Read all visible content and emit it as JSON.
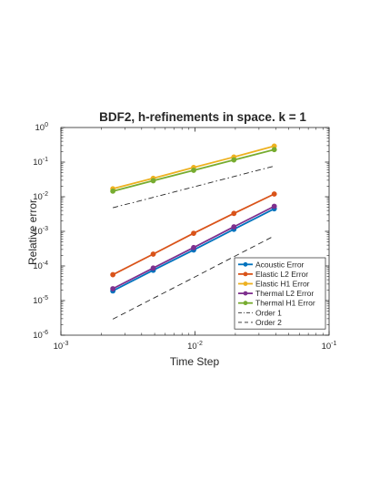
{
  "chart_data": {
    "type": "line",
    "title": "BDF2, h-refinements in space. k = 1",
    "xlabel": "Time Step",
    "ylabel": "Relative error",
    "x_scale": "log",
    "y_scale": "log",
    "xlim": [
      0.001,
      0.1
    ],
    "ylim": [
      1e-06,
      1
    ],
    "grid": false,
    "legend_position": "bottom-right",
    "x_ticks": [
      {
        "base": "10",
        "exp": "-3",
        "value": 0.001
      },
      {
        "base": "10",
        "exp": "-2",
        "value": 0.01
      },
      {
        "base": "10",
        "exp": "-1",
        "value": 0.1
      }
    ],
    "y_ticks": [
      {
        "base": "10",
        "exp": "-6",
        "value": 1e-06
      },
      {
        "base": "10",
        "exp": "-5",
        "value": 1e-05
      },
      {
        "base": "10",
        "exp": "-4",
        "value": 0.0001
      },
      {
        "base": "10",
        "exp": "-3",
        "value": 0.001
      },
      {
        "base": "10",
        "exp": "-2",
        "value": 0.01
      },
      {
        "base": "10",
        "exp": "-1",
        "value": 0.1
      },
      {
        "base": "10",
        "exp": "0",
        "value": 1
      }
    ],
    "x": [
      0.00244,
      0.00488,
      0.00977,
      0.0195,
      0.039
    ],
    "series": [
      {
        "name": "Acoustic Error",
        "color": "#0072BD",
        "style": "solid-marker",
        "values": [
          1.9e-05,
          7.5e-05,
          0.00029,
          0.00115,
          0.0045
        ]
      },
      {
        "name": "Elastic L2 Error",
        "color": "#D95319",
        "style": "solid-marker",
        "values": [
          5.6e-05,
          0.00022,
          0.00088,
          0.0033,
          0.012
        ]
      },
      {
        "name": "Elastic H1 Error",
        "color": "#EDB120",
        "style": "solid-marker",
        "values": [
          0.017,
          0.034,
          0.07,
          0.14,
          0.29
        ]
      },
      {
        "name": "Thermal L2 Error",
        "color": "#7E2F8E",
        "style": "solid-marker",
        "values": [
          2.2e-05,
          8.7e-05,
          0.00034,
          0.00135,
          0.0053
        ]
      },
      {
        "name": "Thermal H1 Error",
        "color": "#77AC30",
        "style": "solid-marker",
        "values": [
          0.0145,
          0.029,
          0.058,
          0.116,
          0.23
        ]
      },
      {
        "name": "Order 1",
        "color": "#262626",
        "style": "dashdot",
        "values": [
          0.0048,
          0.0096,
          0.0192,
          0.0384,
          0.0768
        ]
      },
      {
        "name": "Order 2",
        "color": "#262626",
        "style": "dashed",
        "values": [
          2.9e-06,
          1.16e-05,
          4.6e-05,
          0.000185,
          0.00074
        ]
      }
    ]
  }
}
